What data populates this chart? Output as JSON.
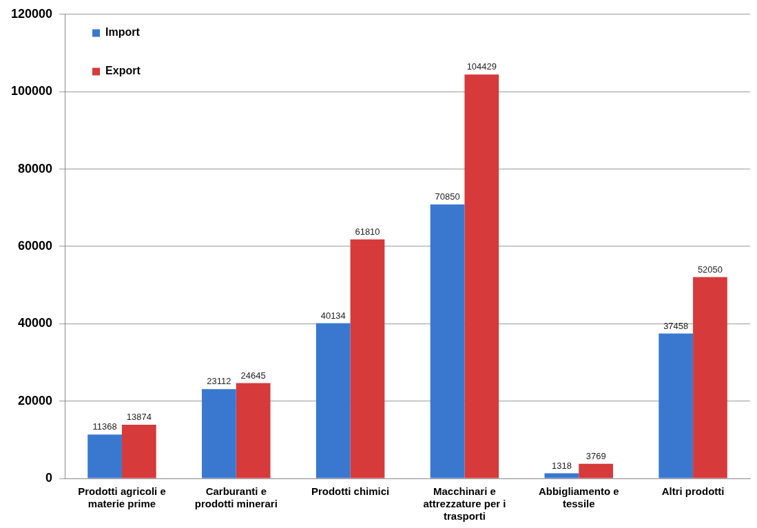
{
  "chart_data": {
    "type": "bar",
    "categories": [
      "Prodotti agricoli e materie prime",
      "Carburanti e prodotti minerari",
      "Prodotti chimici",
      "Macchinari e attrezzature per i trasporti",
      "Abbigliamento e tessile",
      "Altri prodotti"
    ],
    "series": [
      {
        "name": "Import",
        "color": "#3a78d0",
        "values": [
          11368,
          23112,
          40134,
          70850,
          1318,
          37458
        ]
      },
      {
        "name": "Export",
        "color": "#d63a3a",
        "values": [
          13874,
          24645,
          61810,
          104429,
          3769,
          52050
        ]
      }
    ],
    "ylim": [
      0,
      120000
    ],
    "yticks": [
      0,
      20000,
      40000,
      60000,
      80000,
      100000,
      120000
    ],
    "grid": "y",
    "legend": "top left",
    "data_labels": true
  }
}
